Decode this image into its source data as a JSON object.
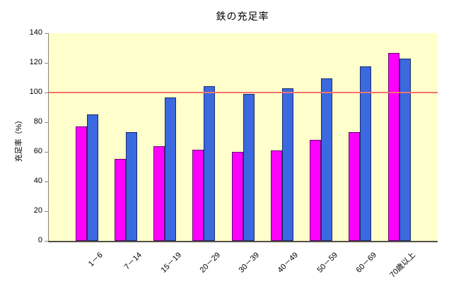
{
  "chart_data": {
    "type": "bar",
    "title": "鉄の充足率",
    "xlabel": "",
    "ylabel": "充足率（%）",
    "categories": [
      "1－6",
      "7－14",
      "15－19",
      "20－29",
      "30－39",
      "40－49",
      "50－59",
      "60－69",
      "70歳以上"
    ],
    "series": [
      {
        "label": "",
        "color": "#ff00ff",
        "values": [
          77,
          55,
          64,
          61.5,
          60,
          61,
          68,
          73.5,
          126.5
        ]
      },
      {
        "label": "",
        "color": "#3a69e0",
        "values": [
          85,
          73.5,
          96.5,
          104.5,
          99,
          103,
          109.5,
          117.5,
          123
        ]
      }
    ],
    "ylim": [
      0,
      140
    ],
    "yticks": [
      0,
      20,
      40,
      60,
      80,
      100,
      120,
      140
    ],
    "reference_line": {
      "value": 100,
      "color": "#f4736c"
    },
    "plot_background": "#ffffcc",
    "outer_background": "#ffffff",
    "axis_color": "#8a887c",
    "grid": false,
    "legend": "none",
    "xtick_rotation_deg": 45
  }
}
